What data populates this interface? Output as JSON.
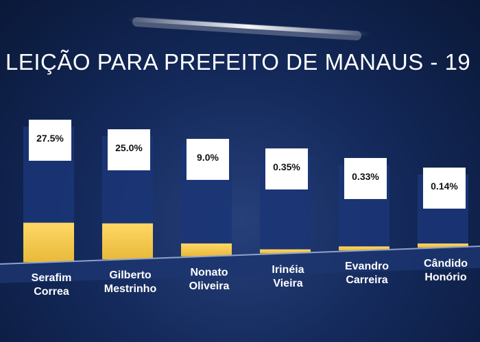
{
  "title": "LEIÇÃO PARA PREFEITO DE MANAUS - 19",
  "colors": {
    "background": "#142a5c",
    "bar_fill": "#f2c94c",
    "bar_box": "#1b3575",
    "label_box": "#ffffff",
    "baseline": "#8fa2c8"
  },
  "chart_data": {
    "type": "bar",
    "title": "LEIÇÃO PARA PREFEITO DE MANAUS - 19",
    "xlabel": "",
    "ylabel": "",
    "ylim": [
      0,
      100
    ],
    "grid": false,
    "legend": "none",
    "categories": [
      [
        "Serafim",
        "Correa"
      ],
      [
        "Gilberto",
        "Mestrinho"
      ],
      [
        "Nonato",
        "Oliveira"
      ],
      [
        "Irinéia",
        "Vieira"
      ],
      [
        "Evandro",
        "Carreira"
      ],
      [
        "Cândido",
        "Honório"
      ]
    ],
    "values": [
      27.5,
      25.0,
      9.0,
      0.35,
      0.33,
      0.14
    ],
    "value_labels": [
      "27.5%",
      "25.0%",
      "9.0%",
      "0.35%",
      "0.33%",
      "0.14%"
    ]
  }
}
